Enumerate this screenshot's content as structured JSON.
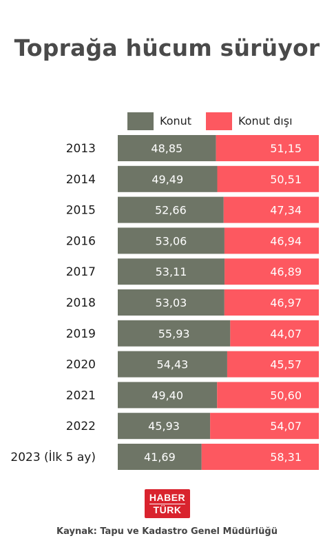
{
  "title": "Toprağa hücum sürüyor",
  "legend": {
    "konut": "Konut",
    "konut_disi": "Konut dışı"
  },
  "colors": {
    "konut": "#6e7566",
    "konut_disi": "#fd5860"
  },
  "chart_data": {
    "type": "bar",
    "stacked": true,
    "orientation": "horizontal",
    "categories": [
      "2013",
      "2014",
      "2015",
      "2016",
      "2017",
      "2018",
      "2019",
      "2020",
      "2021",
      "2022",
      "2023 (İlk 5 ay)"
    ],
    "series": [
      {
        "name": "Konut",
        "values": [
          48.85,
          49.49,
          52.66,
          53.06,
          53.11,
          53.03,
          55.93,
          54.43,
          49.4,
          45.93,
          41.69
        ],
        "labels": [
          "48,85",
          "49,49",
          "52,66",
          "53,06",
          "53,11",
          "53,03",
          "55,93",
          "54,43",
          "49,40",
          "45,93",
          "41,69"
        ]
      },
      {
        "name": "Konut dışı",
        "values": [
          51.15,
          50.51,
          47.34,
          46.94,
          46.89,
          46.97,
          44.07,
          45.57,
          50.6,
          54.07,
          58.31
        ],
        "labels": [
          "51,15",
          "50,51",
          "47,34",
          "46,94",
          "46,89",
          "46,97",
          "44,07",
          "45,57",
          "50,60",
          "54,07",
          "58,31"
        ]
      }
    ],
    "xlim": [
      0,
      100
    ],
    "legend_position": "top"
  },
  "logo": {
    "top": "HABER",
    "bottom": "TÜRK"
  },
  "source": "Kaynak: Tapu ve Kadastro Genel Müdürlüğü"
}
